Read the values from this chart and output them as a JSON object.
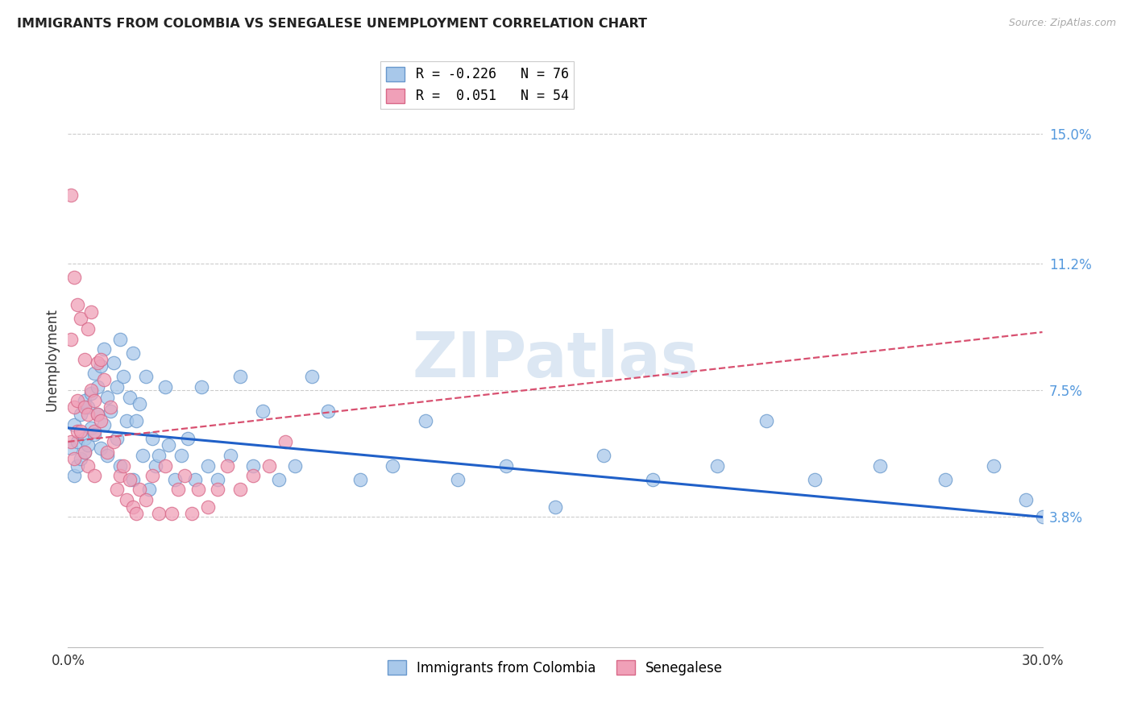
{
  "title": "IMMIGRANTS FROM COLOMBIA VS SENEGALESE UNEMPLOYMENT CORRELATION CHART",
  "source": "Source: ZipAtlas.com",
  "ylabel": "Unemployment",
  "right_yticks_pct": [
    3.8,
    7.5,
    11.2,
    15.0
  ],
  "right_ytick_labels": [
    "3.8%",
    "7.5%",
    "11.2%",
    "15.0%"
  ],
  "xlim": [
    0.0,
    0.3
  ],
  "ylim": [
    0.0,
    0.168
  ],
  "watermark": "ZIPatlas",
  "colombia_color": "#a8c8ea",
  "colombia_edge": "#6898cc",
  "senegal_color": "#f0a0b8",
  "senegal_edge": "#d86888",
  "colombia_line_color": "#2060c8",
  "senegal_line_color": "#d85070",
  "blue_line_y_start": 0.064,
  "blue_line_y_end": 0.038,
  "pink_line_y_start": 0.06,
  "pink_line_y_end": 0.092,
  "blue_scatter_x": [
    0.001,
    0.002,
    0.002,
    0.003,
    0.003,
    0.004,
    0.004,
    0.005,
    0.005,
    0.005,
    0.006,
    0.006,
    0.007,
    0.007,
    0.008,
    0.008,
    0.009,
    0.009,
    0.01,
    0.01,
    0.011,
    0.011,
    0.012,
    0.012,
    0.013,
    0.014,
    0.015,
    0.015,
    0.016,
    0.016,
    0.017,
    0.018,
    0.019,
    0.02,
    0.02,
    0.021,
    0.022,
    0.023,
    0.024,
    0.025,
    0.026,
    0.027,
    0.028,
    0.03,
    0.031,
    0.033,
    0.035,
    0.037,
    0.039,
    0.041,
    0.043,
    0.046,
    0.05,
    0.053,
    0.057,
    0.06,
    0.065,
    0.07,
    0.075,
    0.08,
    0.09,
    0.1,
    0.11,
    0.12,
    0.135,
    0.15,
    0.165,
    0.18,
    0.2,
    0.215,
    0.23,
    0.25,
    0.27,
    0.285,
    0.295,
    0.3
  ],
  "blue_scatter_y": [
    0.058,
    0.05,
    0.065,
    0.06,
    0.053,
    0.068,
    0.055,
    0.072,
    0.061,
    0.057,
    0.07,
    0.059,
    0.074,
    0.064,
    0.08,
    0.062,
    0.076,
    0.068,
    0.082,
    0.058,
    0.087,
    0.065,
    0.073,
    0.056,
    0.069,
    0.083,
    0.076,
    0.061,
    0.09,
    0.053,
    0.079,
    0.066,
    0.073,
    0.086,
    0.049,
    0.066,
    0.071,
    0.056,
    0.079,
    0.046,
    0.061,
    0.053,
    0.056,
    0.076,
    0.059,
    0.049,
    0.056,
    0.061,
    0.049,
    0.076,
    0.053,
    0.049,
    0.056,
    0.079,
    0.053,
    0.069,
    0.049,
    0.053,
    0.079,
    0.069,
    0.049,
    0.053,
    0.066,
    0.049,
    0.053,
    0.041,
    0.056,
    0.049,
    0.053,
    0.066,
    0.049,
    0.053,
    0.049,
    0.053,
    0.043,
    0.038
  ],
  "pink_scatter_x": [
    0.001,
    0.001,
    0.001,
    0.002,
    0.002,
    0.002,
    0.003,
    0.003,
    0.003,
    0.004,
    0.004,
    0.005,
    0.005,
    0.005,
    0.006,
    0.006,
    0.006,
    0.007,
    0.007,
    0.008,
    0.008,
    0.008,
    0.009,
    0.009,
    0.01,
    0.01,
    0.011,
    0.012,
    0.013,
    0.014,
    0.015,
    0.016,
    0.017,
    0.018,
    0.019,
    0.02,
    0.021,
    0.022,
    0.024,
    0.026,
    0.028,
    0.03,
    0.032,
    0.034,
    0.036,
    0.038,
    0.04,
    0.043,
    0.046,
    0.049,
    0.053,
    0.057,
    0.062,
    0.067
  ],
  "pink_scatter_y": [
    0.132,
    0.09,
    0.06,
    0.108,
    0.07,
    0.055,
    0.1,
    0.063,
    0.072,
    0.096,
    0.063,
    0.084,
    0.057,
    0.07,
    0.093,
    0.053,
    0.068,
    0.075,
    0.098,
    0.063,
    0.05,
    0.072,
    0.083,
    0.068,
    0.084,
    0.066,
    0.078,
    0.057,
    0.07,
    0.06,
    0.046,
    0.05,
    0.053,
    0.043,
    0.049,
    0.041,
    0.039,
    0.046,
    0.043,
    0.05,
    0.039,
    0.053,
    0.039,
    0.046,
    0.05,
    0.039,
    0.046,
    0.041,
    0.046,
    0.053,
    0.046,
    0.05,
    0.053,
    0.06
  ]
}
